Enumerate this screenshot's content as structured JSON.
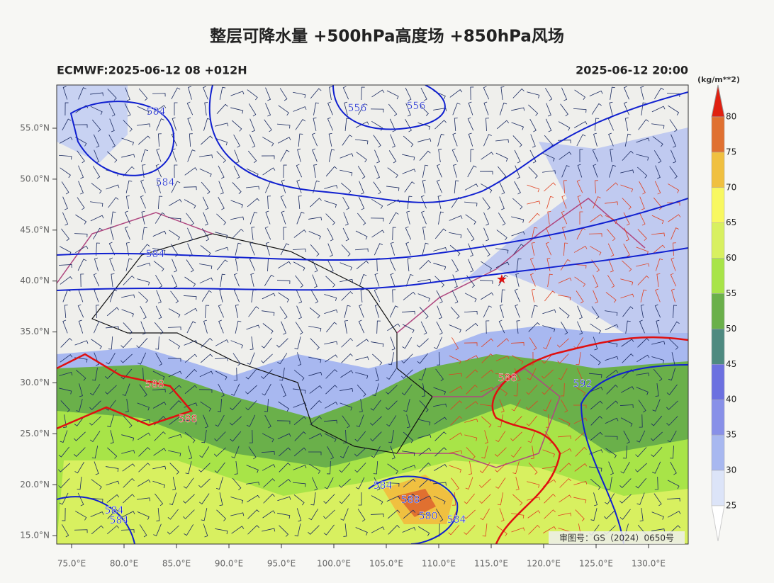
{
  "header": {
    "title": "整层可降水量 +500hPa高度场 +850hPa风场",
    "left": "ECMWF:2025-06-12 08 +012H",
    "right": "2025-06-12 20:00"
  },
  "map": {
    "lat_labels": [
      "55.0°N",
      "50.0°N",
      "45.0°N",
      "40.0°N",
      "35.0°N",
      "30.0°N",
      "25.0°N",
      "20.0°N",
      "15.0°N"
    ],
    "lon_labels": [
      "75.0°E",
      "80.0°E",
      "85.0°E",
      "90.0°E",
      "95.0°E",
      "100.0°E",
      "105.0°E",
      "110.0°E",
      "115.0°E",
      "120.0°E",
      "125.0°E",
      "130.0°E"
    ],
    "contour_labels": [
      584,
      556,
      556,
      584,
      584,
      588,
      588,
      588,
      592,
      584,
      588,
      580,
      584,
      584,
      584
    ],
    "note": "审图号：GS（2024）0650号"
  },
  "colorbar": {
    "unit": "(kg/m**2)",
    "levels": [
      80,
      75,
      70,
      65,
      60,
      55,
      50,
      45,
      40,
      35,
      30,
      25
    ],
    "colors": [
      "#e07030",
      "#f0c040",
      "#f8f860",
      "#d8f060",
      "#a8e448",
      "#6ab04a",
      "#4e8a80",
      "#6c70e0",
      "#8890e8",
      "#a8b8f0",
      "#dce4f8"
    ],
    "top_color": "#e02010"
  }
}
